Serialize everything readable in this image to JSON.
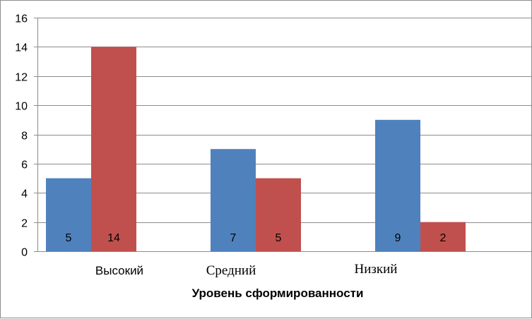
{
  "chart_data": {
    "type": "bar",
    "categories": [
      "Высокий",
      "Средний",
      "Низкий"
    ],
    "series": [
      {
        "values": [
          5,
          7,
          9
        ],
        "color": "#4f81bd"
      },
      {
        "values": [
          14,
          5,
          2
        ],
        "color": "#c0504d"
      }
    ],
    "data_labels": true,
    "title": "",
    "xlabel": "Уровень сформированности",
    "ylabel": "",
    "ylim": [
      0,
      16
    ],
    "yticks": [
      0,
      2,
      4,
      6,
      8,
      10,
      12,
      14,
      16
    ],
    "grid": true,
    "legend": "none"
  }
}
